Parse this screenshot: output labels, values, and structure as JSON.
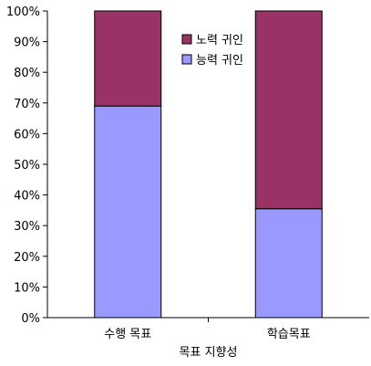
{
  "chart_data": {
    "type": "bar",
    "stacked": true,
    "percent": true,
    "categories": [
      "수행 목표",
      "학습목표"
    ],
    "series": [
      {
        "name": "능력 귀인",
        "values": [
          69,
          35.5
        ],
        "color": "#9999ff"
      },
      {
        "name": "노력 귀인",
        "values": [
          31,
          64.5
        ],
        "color": "#993366"
      }
    ],
    "xlabel": "목표 지향성",
    "ylabel": "",
    "ylim": [
      0,
      100
    ],
    "y_ticks": [
      "0%",
      "10%",
      "20%",
      "30%",
      "40%",
      "50%",
      "60%",
      "70%",
      "80%",
      "90%",
      "100%"
    ],
    "legend_order": [
      "노력 귀인",
      "능력 귀인"
    ],
    "legend_position": "top-center",
    "grid": false
  }
}
